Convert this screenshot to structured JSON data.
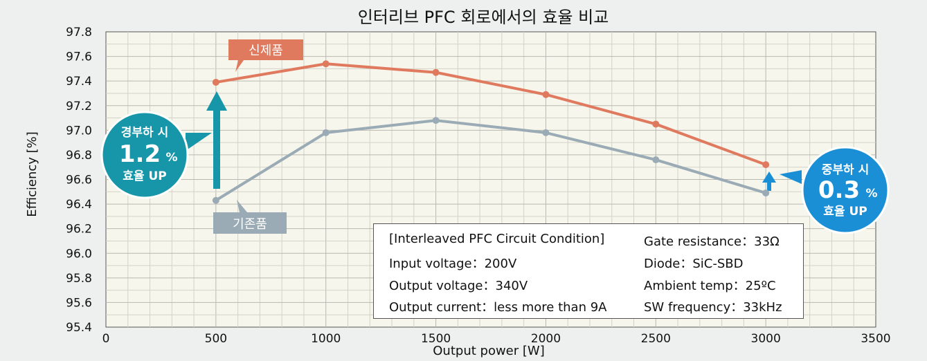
{
  "chart_data": {
    "type": "line",
    "title": "인터리브 PFC 회로에서의 효율 비교",
    "xlabel": "Output power [W]",
    "ylabel": "Efficiency [%]",
    "xlim": [
      0,
      3500
    ],
    "ylim": [
      95.4,
      97.8
    ],
    "xticks": [
      0,
      500,
      1000,
      1500,
      2000,
      2500,
      3000,
      3500
    ],
    "xtick_labels": [
      "0",
      "500",
      "1000",
      "1500",
      "2000",
      "2500",
      "3000",
      "3500"
    ],
    "yticks": [
      95.4,
      95.6,
      95.8,
      96.0,
      96.2,
      96.4,
      96.6,
      96.8,
      97.0,
      97.2,
      97.4,
      97.6,
      97.8
    ],
    "ytick_labels": [
      "95.4",
      "95.6",
      "95.8",
      "96.0",
      "96.2",
      "96.4",
      "96.6",
      "96.8",
      "97.0",
      "97.2",
      "97.4",
      "97.6",
      "97.8"
    ],
    "grid": true,
    "series": [
      {
        "name": "신제품",
        "color": "#e07a5f",
        "x": [
          500,
          1000,
          1500,
          2000,
          2500,
          3000
        ],
        "y": [
          97.39,
          97.54,
          97.47,
          97.29,
          97.05,
          96.72
        ]
      },
      {
        "name": "기존품",
        "color": "#9aabb5",
        "x": [
          500,
          1000,
          1500,
          2000,
          2500,
          3000
        ],
        "y": [
          96.43,
          96.98,
          97.08,
          96.98,
          96.76,
          96.49
        ]
      }
    ],
    "annotations": [
      {
        "line1": "경부하 시",
        "value": "1.2",
        "unit": "%",
        "line3": "효율 UP",
        "color": "#1696a8"
      },
      {
        "line1": "중부하 시",
        "value": "0.3",
        "unit": "%",
        "line3": "효율 UP",
        "color": "#1b8fd6"
      }
    ],
    "condition_box": {
      "left": [
        "[Interleaved PFC Circuit Condition]",
        "Input voltage：200V",
        "Output voltage：340V",
        "Output current：less more than 9A"
      ],
      "right": [
        "Gate resistance：33Ω",
        "Diode：SiC-SBD",
        "Ambient temp：25ºC",
        "SW frequency：33kHz"
      ]
    }
  }
}
